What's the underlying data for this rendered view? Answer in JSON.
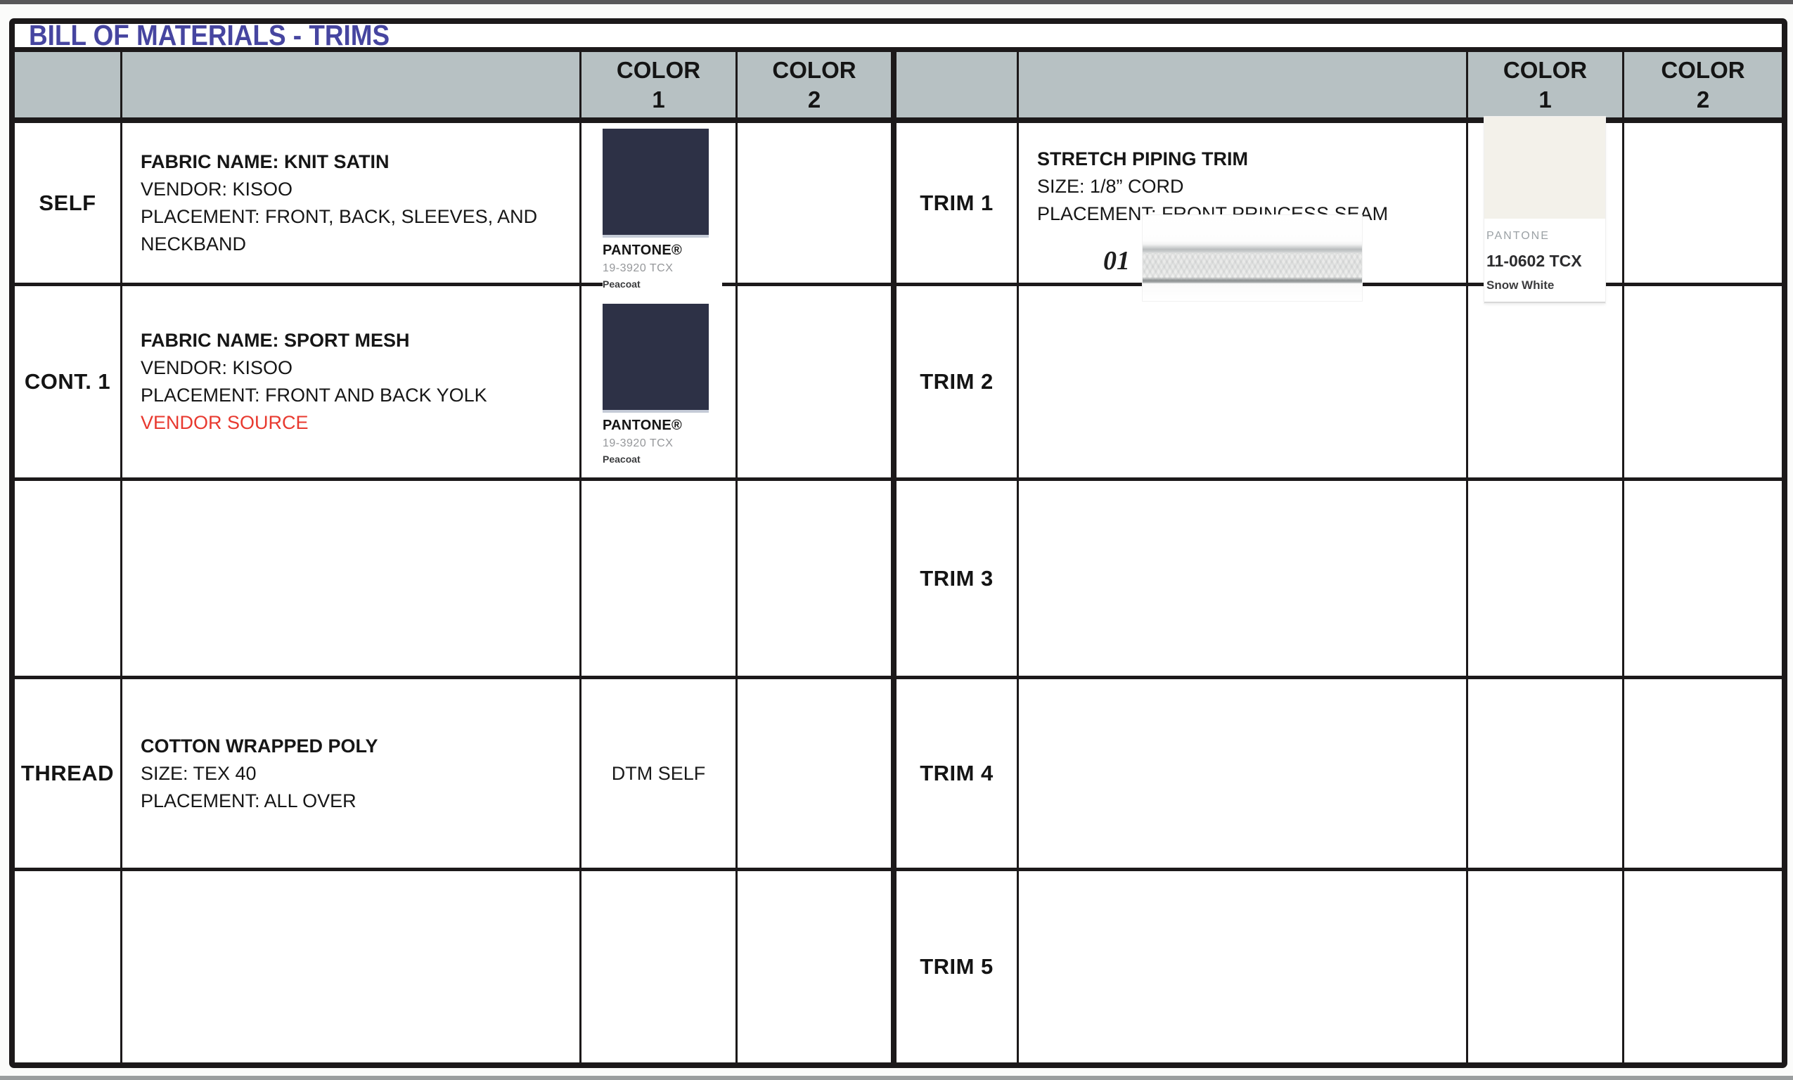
{
  "title": "BILL OF MATERIALS - TRIMS",
  "colors": {
    "title_blue": "#4645a0",
    "header_gray": "#b7c1c3",
    "grid_black": "#1c191a",
    "alert_red": "#e8392f",
    "peacoat_navy": "#2d3146",
    "snow_white": "#f3f1ea"
  },
  "header": {
    "color1": "COLOR\n1",
    "color2": "COLOR\n2"
  },
  "left": {
    "rows": [
      {
        "label": "SELF",
        "line1": "FABRIC NAME: KNIT SATIN",
        "line2": "VENDOR: KISOO",
        "line3": "PLACEMENT: FRONT, BACK, SLEEVES, AND NECKBAND"
      },
      {
        "label": "CONT. 1",
        "line1": "FABRIC NAME: SPORT MESH",
        "line2": "VENDOR: KISOO",
        "line3": "PLACEMENT: FRONT AND BACK YOLK",
        "line4": "VENDOR SOURCE"
      },
      {
        "label": ""
      },
      {
        "label": "THREAD",
        "line1": "COTTON WRAPPED POLY",
        "line2": "SIZE: TEX 40",
        "line3": "PLACEMENT: ALL OVER",
        "color1_text": "DTM SELF"
      },
      {
        "label": ""
      }
    ]
  },
  "right": {
    "rows": [
      {
        "label": "TRIM 1",
        "line1": "STRETCH PIPING TRIM",
        "line2": "SIZE: 1/8” CORD",
        "line3": "PLACEMENT: FRONT PRINCESS SEAM",
        "image_label": "01"
      },
      {
        "label": "TRIM 2"
      },
      {
        "label": "TRIM 3"
      },
      {
        "label": "TRIM 4"
      },
      {
        "label": "TRIM 5"
      }
    ]
  },
  "pantone_peacoat": {
    "brand": "PANTONE®",
    "code": "19-3920 TCX",
    "name": "Peacoat"
  },
  "pantone_snow": {
    "brand": "PANTONE",
    "code": "11-0602 TCX",
    "name": "Snow White"
  }
}
